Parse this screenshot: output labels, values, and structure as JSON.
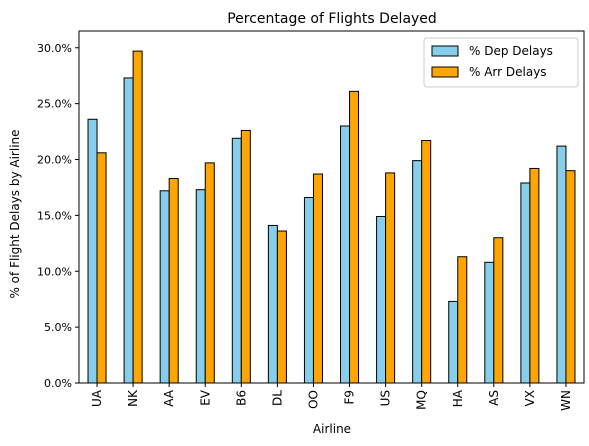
{
  "chart_data": {
    "type": "bar",
    "title": "Percentage of Flights Delayed",
    "xlabel": "Airline",
    "ylabel": "% of Flight Delays by Airline",
    "categories": [
      "UA",
      "NK",
      "AA",
      "EV",
      "B6",
      "DL",
      "OO",
      "F9",
      "US",
      "MQ",
      "HA",
      "AS",
      "VX",
      "WN"
    ],
    "series": [
      {
        "name": "% Dep Delays",
        "color": "#87CEEB",
        "values": [
          23.6,
          27.3,
          17.2,
          17.3,
          21.9,
          14.1,
          16.6,
          23.0,
          14.9,
          19.9,
          7.3,
          10.8,
          17.9,
          21.2
        ]
      },
      {
        "name": "% Arr Delays",
        "color": "#FFA500",
        "values": [
          20.6,
          29.7,
          18.3,
          19.7,
          22.6,
          13.6,
          18.7,
          26.1,
          18.8,
          21.7,
          11.3,
          13.0,
          19.2,
          19.0
        ]
      }
    ],
    "ylim": [
      0,
      31.5
    ],
    "yticks": [
      0,
      5,
      10,
      15,
      20,
      25,
      30
    ],
    "ytick_labels": [
      "0.0%",
      "5.0%",
      "10.0%",
      "15.0%",
      "20.0%",
      "25.0%",
      "30.0%"
    ],
    "grid": false,
    "legend_position": "top-right"
  }
}
